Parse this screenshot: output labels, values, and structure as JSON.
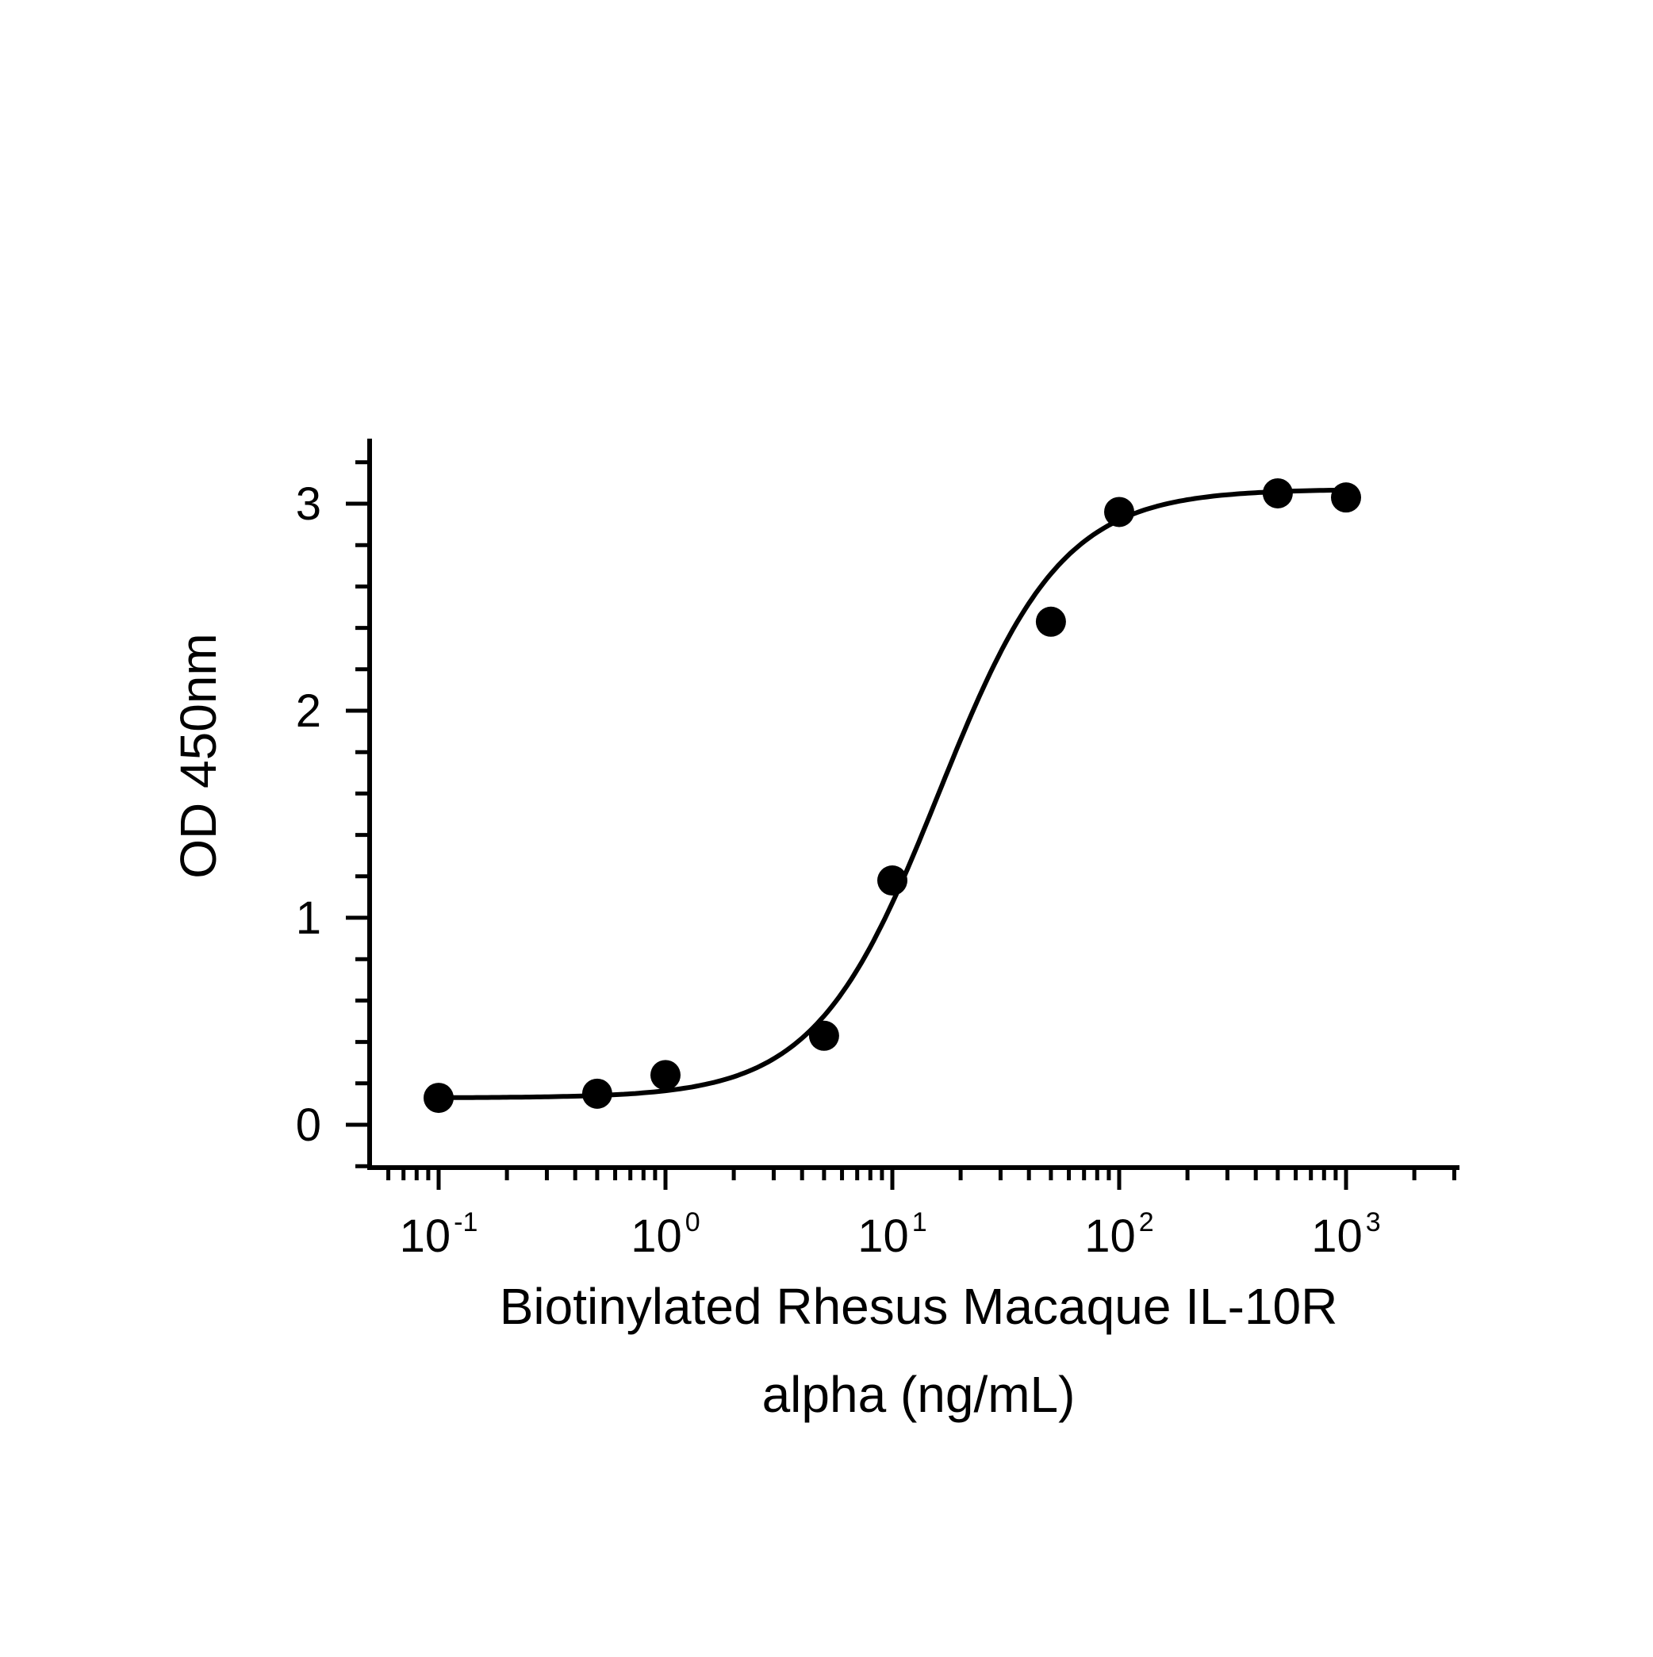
{
  "chart_data": {
    "type": "scatter",
    "title": "",
    "xlabel_lines": [
      "Biotinylated Rhesus Macaque IL-10R",
      "alpha (ng/mL)"
    ],
    "ylabel": "OD 450nm",
    "x_scale": "log10",
    "xlim": [
      0.05,
      3000
    ],
    "ylim": [
      -0.2,
      3.3
    ],
    "x_ticks": [
      {
        "value": 0.1,
        "base": "10",
        "exp": "-1"
      },
      {
        "value": 1,
        "base": "10",
        "exp": "0"
      },
      {
        "value": 10,
        "base": "10",
        "exp": "1"
      },
      {
        "value": 100,
        "base": "10",
        "exp": "2"
      },
      {
        "value": 1000,
        "base": "10",
        "exp": "3"
      }
    ],
    "y_ticks": [
      0,
      1,
      2,
      3
    ],
    "y_minor_step": 0.2,
    "grid": false,
    "legend": "none",
    "series": [
      {
        "points": [
          {
            "x": 0.1,
            "y": 0.13
          },
          {
            "x": 0.5,
            "y": 0.15
          },
          {
            "x": 1,
            "y": 0.24
          },
          {
            "x": 5,
            "y": 0.43
          },
          {
            "x": 10,
            "y": 1.18
          },
          {
            "x": 50,
            "y": 2.43
          },
          {
            "x": 100,
            "y": 2.96
          },
          {
            "x": 500,
            "y": 3.05
          },
          {
            "x": 1000,
            "y": 3.03
          }
        ],
        "fit": {
          "model": "4PL",
          "bottom": 0.13,
          "top": 3.07,
          "ec50": 16,
          "hill": 1.6
        },
        "color": "#000000"
      }
    ]
  }
}
